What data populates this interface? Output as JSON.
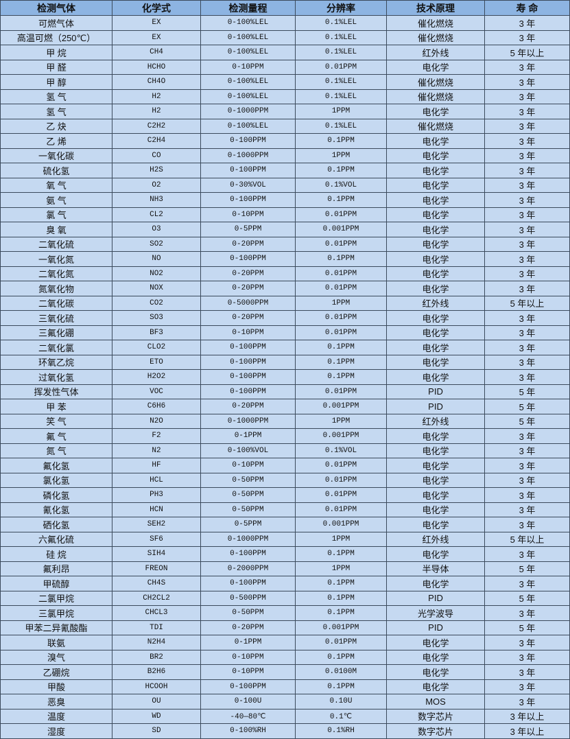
{
  "colors": {
    "header_bg": "#8db4e2",
    "row_bg": "#c5d9f1",
    "border": "#3b4a5c"
  },
  "table": {
    "headers": [
      "检测气体",
      "化学式",
      "检测量程",
      "分辨率",
      "技术原理",
      "寿 命"
    ],
    "rows": [
      [
        "可燃气体",
        "EX",
        "0-100%LEL",
        "0.1%LEL",
        "催化燃烧",
        "3 年"
      ],
      [
        "高温可燃（250℃）",
        "EX",
        "0-100%LEL",
        "0.1%LEL",
        "催化燃烧",
        "3 年"
      ],
      [
        "甲 烷",
        "CH4",
        "0-100%LEL",
        "0.1%LEL",
        "红外线",
        "5 年以上"
      ],
      [
        "甲 醛",
        "HCHO",
        "0-10PPM",
        "0.01PPM",
        "电化学",
        "3 年"
      ],
      [
        "甲 醇",
        "CH4O",
        "0-100%LEL",
        "0.1%LEL",
        "催化燃烧",
        "3 年"
      ],
      [
        "氢 气",
        "H2",
        "0-100%LEL",
        "0.1%LEL",
        "催化燃烧",
        "3 年"
      ],
      [
        "氢 气",
        "H2",
        "0-1000PPM",
        "1PPM",
        "电化学",
        "3 年"
      ],
      [
        "乙 炔",
        "C2H2",
        "0-100%LEL",
        "0.1%LEL",
        "催化燃烧",
        "3 年"
      ],
      [
        "乙 烯",
        "C2H4",
        "0-100PPM",
        "0.1PPM",
        "电化学",
        "3 年"
      ],
      [
        "一氧化碳",
        "CO",
        "0-1000PPM",
        "1PPM",
        "电化学",
        "3 年"
      ],
      [
        "硫化氢",
        "H2S",
        "0-100PPM",
        "0.1PPM",
        "电化学",
        "3 年"
      ],
      [
        "氧 气",
        "O2",
        "0-30%VOL",
        "0.1%VOL",
        "电化学",
        "3 年"
      ],
      [
        "氨 气",
        "NH3",
        "0-100PPM",
        "0.1PPM",
        "电化学",
        "3 年"
      ],
      [
        "氯 气",
        "CL2",
        "0-10PPM",
        "0.01PPM",
        "电化学",
        "3 年"
      ],
      [
        "臭 氧",
        "O3",
        "0-5PPM",
        "0.001PPM",
        "电化学",
        "3 年"
      ],
      [
        "二氧化硫",
        "SO2",
        "0-20PPM",
        "0.01PPM",
        "电化学",
        "3 年"
      ],
      [
        "一氧化氮",
        "NO",
        "0-100PPM",
        "0.1PPM",
        "电化学",
        "3 年"
      ],
      [
        "二氧化氮",
        "NO2",
        "0-20PPM",
        "0.01PPM",
        "电化学",
        "3 年"
      ],
      [
        "氮氧化物",
        "NOX",
        "0-20PPM",
        "0.01PPM",
        "电化学",
        "3 年"
      ],
      [
        "二氧化碳",
        "CO2",
        "0-5000PPM",
        "1PPM",
        "红外线",
        "5 年以上"
      ],
      [
        "三氧化硫",
        "SO3",
        "0-20PPM",
        "0.01PPM",
        "电化学",
        "3 年"
      ],
      [
        "三氟化硼",
        "BF3",
        "0-10PPM",
        "0.01PPM",
        "电化学",
        "3 年"
      ],
      [
        "二氧化氯",
        "CLO2",
        "0-100PPM",
        "0.1PPM",
        "电化学",
        "3 年"
      ],
      [
        "环氧乙烷",
        "ETO",
        "0-100PPM",
        "0.1PPM",
        "电化学",
        "3 年"
      ],
      [
        "过氧化氢",
        "H2O2",
        "0-100PPM",
        "0.1PPM",
        "电化学",
        "3 年"
      ],
      [
        "挥发性气体",
        "VOC",
        "0-100PPM",
        "0.01PPM",
        "PID",
        "5 年"
      ],
      [
        "甲 苯",
        "C6H6",
        "0-20PPM",
        "0.001PPM",
        "PID",
        "5 年"
      ],
      [
        "笑 气",
        "N2O",
        "0-1000PPM",
        "1PPM",
        "红外线",
        "5 年"
      ],
      [
        "氟 气",
        "F2",
        "0-1PPM",
        "0.001PPM",
        "电化学",
        "3 年"
      ],
      [
        "氮 气",
        "N2",
        "0-100%VOL",
        "0.1%VOL",
        "电化学",
        "3 年"
      ],
      [
        "氟化氢",
        "HF",
        "0-10PPM",
        "0.01PPM",
        "电化学",
        "3 年"
      ],
      [
        "氯化氢",
        "HCL",
        "0-50PPM",
        "0.01PPM",
        "电化学",
        "3 年"
      ],
      [
        "磷化氢",
        "PH3",
        "0-50PPM",
        "0.01PPM",
        "电化学",
        "3 年"
      ],
      [
        "氰化氢",
        "HCN",
        "0-50PPM",
        "0.01PPM",
        "电化学",
        "3 年"
      ],
      [
        "硒化氢",
        "SEH2",
        "0-5PPM",
        "0.001PPM",
        "电化学",
        "3 年"
      ],
      [
        "六氟化硫",
        "SF6",
        "0-1000PPM",
        "1PPM",
        "红外线",
        "5 年以上"
      ],
      [
        "硅 烷",
        "SIH4",
        "0-100PPM",
        "0.1PPM",
        "电化学",
        "3 年"
      ],
      [
        "氟利昂",
        "FREON",
        "0-2000PPM",
        "1PPM",
        "半导体",
        "5 年"
      ],
      [
        "甲硫醇",
        "CH4S",
        "0-100PPM",
        "0.1PPM",
        "电化学",
        "3 年"
      ],
      [
        "二氯甲烷",
        "CH2CL2",
        "0-500PPM",
        "0.1PPM",
        "PID",
        "5 年"
      ],
      [
        "三氯甲烷",
        "CHCL3",
        "0-50PPM",
        "0.1PPM",
        "光学波导",
        "3 年"
      ],
      [
        "甲苯二异氰酸酯",
        "TDI",
        "0-20PPM",
        "0.001PPM",
        "PID",
        "5 年"
      ],
      [
        "联氨",
        "N2H4",
        "0-1PPM",
        "0.01PPM",
        "电化学",
        "3 年"
      ],
      [
        "溴气",
        "BR2",
        "0-10PPM",
        "0.1PPM",
        "电化学",
        "3 年"
      ],
      [
        "乙硼烷",
        "B2H6",
        "0-10PPM",
        "0.0100M",
        "电化学",
        "3 年"
      ],
      [
        "甲酸",
        "HCOOH",
        "0-100PPM",
        "0.1PPM",
        "电化学",
        "3 年"
      ],
      [
        "恶臭",
        "OU",
        "0-100U",
        "0.10U",
        "MOS",
        "3 年"
      ],
      [
        "温度",
        "WD",
        "-40—80℃",
        "0.1℃",
        "数字芯片",
        "3 年以上"
      ],
      [
        "湿度",
        "SD",
        "0-100%RH",
        "0.1%RH",
        "数字芯片",
        "3 年以上"
      ]
    ]
  }
}
